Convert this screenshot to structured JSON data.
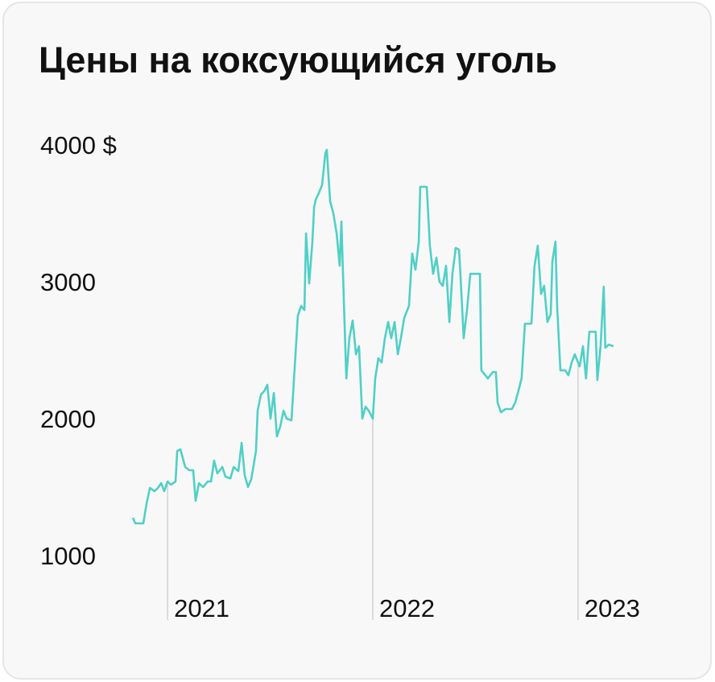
{
  "chart_data": {
    "type": "line",
    "title": "Цены на коксующийся уголь",
    "color": "#4fd0c6",
    "x": [
      2020.831,
      2020.843,
      2020.882,
      2020.898,
      2020.914,
      2020.937,
      2020.953,
      2020.969,
      2020.984,
      2021.0,
      2021.016,
      2021.039,
      2021.047,
      2021.063,
      2021.086,
      2021.106,
      2021.125,
      2021.137,
      2021.153,
      2021.173,
      2021.196,
      2021.212,
      2021.227,
      2021.243,
      2021.267,
      2021.282,
      2021.306,
      2021.322,
      2021.345,
      2021.361,
      2021.376,
      2021.392,
      2021.408,
      2021.431,
      2021.439,
      2021.455,
      2021.471,
      2021.486,
      2021.502,
      2021.518,
      2021.533,
      2021.549,
      2021.565,
      2021.58,
      2021.604,
      2021.62,
      2021.635,
      2021.651,
      2021.667,
      2021.675,
      2021.69,
      2021.706,
      2021.714,
      2021.722,
      2021.737,
      2021.753,
      2021.769,
      2021.776,
      2021.792,
      2021.808,
      2021.824,
      2021.839,
      2021.847,
      2021.855,
      2021.871,
      2021.886,
      2021.902,
      2021.918,
      2021.933,
      2021.949,
      2021.965,
      2021.98,
      2022.0,
      2022.012,
      2022.027,
      2022.043,
      2022.059,
      2022.075,
      2022.09,
      2022.106,
      2022.122,
      2022.137,
      2022.153,
      2022.176,
      2022.192,
      2022.208,
      2022.224,
      2022.231,
      2022.263,
      2022.278,
      2022.294,
      2022.31,
      2022.325,
      2022.341,
      2022.357,
      2022.373,
      2022.388,
      2022.404,
      2022.42,
      2022.427,
      2022.443,
      2022.459,
      2022.475,
      2022.522,
      2022.529,
      2022.545,
      2022.561,
      2022.584,
      2022.6,
      2022.608,
      2022.624,
      2022.647,
      2022.678,
      2022.694,
      2022.71,
      2022.725,
      2022.741,
      2022.773,
      2022.788,
      2022.804,
      2022.82,
      2022.835,
      2022.851,
      2022.867,
      2022.875,
      2022.89,
      2022.898,
      2022.914,
      2022.937,
      2022.953,
      2022.969,
      2022.984,
      2023.008,
      2023.024,
      2023.039,
      2023.055,
      2023.086,
      2023.094,
      2023.11,
      2023.125,
      2023.133,
      2023.149,
      2023.173
    ],
    "values": [
      1294,
      1253,
      1253,
      1400,
      1512,
      1488,
      1512,
      1547,
      1488,
      1559,
      1535,
      1559,
      1782,
      1794,
      1665,
      1641,
      1641,
      1418,
      1547,
      1518,
      1559,
      1559,
      1712,
      1618,
      1665,
      1594,
      1582,
      1665,
      1635,
      1841,
      1606,
      1518,
      1576,
      1782,
      2076,
      2194,
      2218,
      2265,
      2018,
      2206,
      1888,
      1959,
      2076,
      2018,
      2006,
      2400,
      2771,
      2841,
      2812,
      3371,
      3006,
      3312,
      3559,
      3618,
      3665,
      3724,
      3959,
      3982,
      3606,
      3518,
      3371,
      3135,
      3459,
      3076,
      2312,
      2606,
      2735,
      2488,
      2547,
      2018,
      2106,
      2076,
      2018,
      2312,
      2459,
      2429,
      2606,
      2724,
      2606,
      2724,
      2488,
      2606,
      2753,
      2841,
      3224,
      3106,
      3312,
      3712,
      3712,
      3282,
      3076,
      3194,
      3018,
      2988,
      3135,
      2724,
      3076,
      3265,
      3253,
      3076,
      2606,
      2812,
      3076,
      3076,
      2371,
      2341,
      2312,
      2359,
      2359,
      2135,
      2065,
      2088,
      2088,
      2135,
      2224,
      2312,
      2712,
      2712,
      3135,
      3282,
      2929,
      2988,
      2724,
      2782,
      3165,
      3312,
      2841,
      2371,
      2371,
      2335,
      2429,
      2488,
      2400,
      2547,
      2312,
      2653,
      2653,
      2300,
      2547,
      2982,
      2535,
      2559,
      2547
    ],
    "xlim": [
      2020.831,
      2023.173
    ],
    "xticks": [
      2021,
      2022,
      2023
    ],
    "ylim": [
      1000,
      4000
    ],
    "yticks": [
      1000,
      2000,
      3000,
      {
        "value": 4000,
        "label": "4000 $"
      }
    ]
  }
}
